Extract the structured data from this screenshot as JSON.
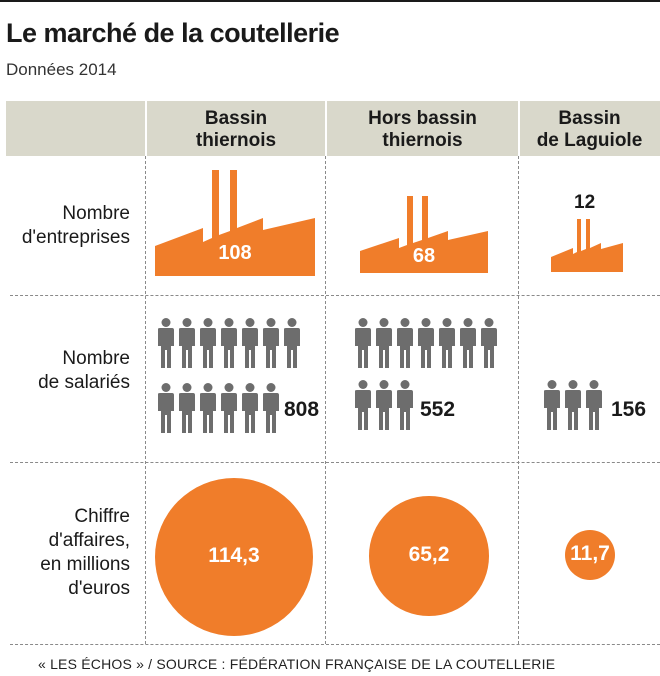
{
  "title": "Le marché de la coutellerie",
  "subtitle": "Données 2014",
  "columns": [
    {
      "line1": "Bassin",
      "line2": "thiernois"
    },
    {
      "line1": "Hors bassin",
      "line2": "thiernois"
    },
    {
      "line1": "Bassin",
      "line2": "de Laguiole"
    }
  ],
  "rows": {
    "entreprises": {
      "line1": "Nombre",
      "line2": "d'entreprises"
    },
    "salaries": {
      "line1": "Nombre",
      "line2": "de salariés"
    },
    "ca": {
      "line1": "Chiffre",
      "line2": "d'affaires,",
      "line3": "en millions",
      "line4": "d'euros"
    }
  },
  "source": "« LES ÉCHOS » / SOURCE : FÉDÉRATION FRANÇAISE DE LA COUTELLERIE",
  "colors": {
    "accent": "#f07d2a",
    "person": "#6d6d6d",
    "header_band": "#d9d8cb"
  },
  "chart_data": {
    "type": "table",
    "categories": [
      "Bassin thiernois",
      "Hors bassin thiernois",
      "Bassin de Laguiole"
    ],
    "series": [
      {
        "name": "Nombre d'entreprises",
        "values": [
          108,
          68,
          12
        ],
        "labels": [
          "108",
          "68",
          "12"
        ]
      },
      {
        "name": "Nombre de salariés",
        "values": [
          808,
          552,
          156
        ],
        "labels": [
          "808",
          "552",
          "156"
        ]
      },
      {
        "name": "Chiffre d'affaires, en millions d'euros",
        "values": [
          114.3,
          65.2,
          11.7
        ],
        "labels": [
          "114,3",
          "65,2",
          "11,7"
        ]
      }
    ]
  }
}
